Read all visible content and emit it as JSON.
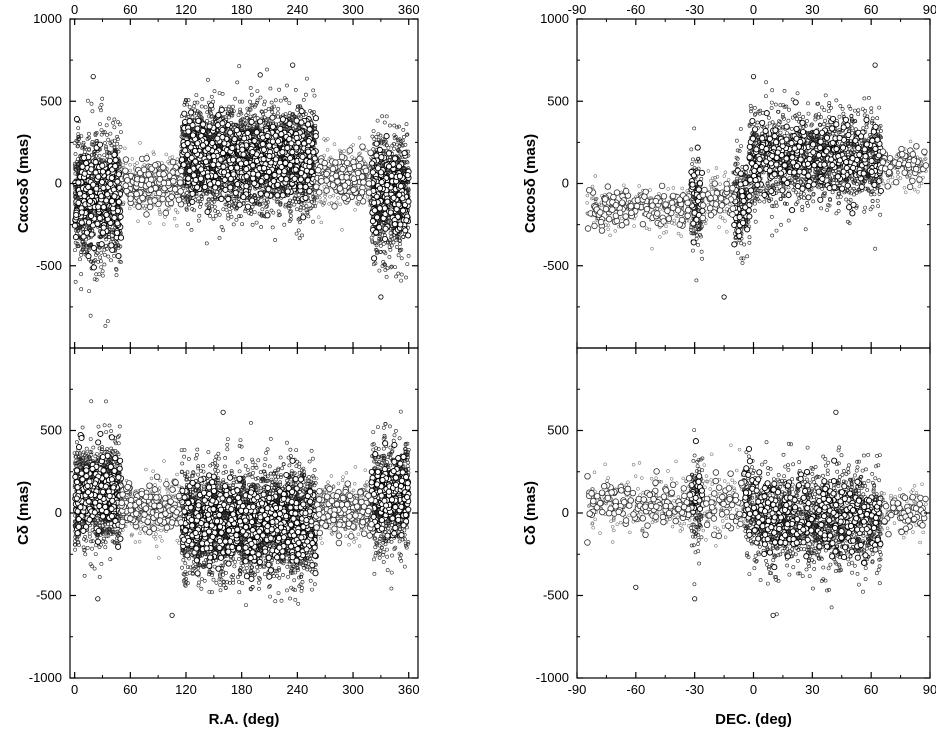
{
  "chart_data": [
    {
      "type": "scatter",
      "panel": "top-left",
      "xlabel": "",
      "ylabel": "Cαcosδ (mas)",
      "xlim": [
        -5,
        370
      ],
      "ylim": [
        -1000,
        1000
      ],
      "x_ticks": [
        0,
        60,
        120,
        180,
        240,
        300,
        360
      ],
      "x_tick_labels_top": [
        "0",
        "60",
        "120",
        "180",
        "240",
        "300",
        "360"
      ],
      "y_ticks": [
        1000,
        500,
        0,
        -500
      ],
      "y_tick_labels": [
        "1000",
        "500",
        "0",
        "-500"
      ],
      "dense_bands": [
        {
          "x": [
            0,
            50
          ],
          "y_mean": -80,
          "y_spread": 250
        },
        {
          "x": [
            115,
            260
          ],
          "y_mean": 150,
          "y_spread": 200
        },
        {
          "x": [
            320,
            360
          ],
          "y_mean": -60,
          "y_spread": 230
        }
      ],
      "sparse_bands": [
        {
          "x": [
            50,
            115
          ],
          "y_mean": 0,
          "y_spread": 110
        },
        {
          "x": [
            260,
            320
          ],
          "y_mean": 30,
          "y_spread": 110
        }
      ],
      "outliers": [
        {
          "x": 330,
          "y": -690
        },
        {
          "x": 20,
          "y": 650
        },
        {
          "x": 200,
          "y": 660
        },
        {
          "x": 235,
          "y": 720
        }
      ]
    },
    {
      "type": "scatter",
      "panel": "bottom-left",
      "xlabel": "R.A. (deg)",
      "ylabel": "Cδ (mas)",
      "xlim": [
        -5,
        370
      ],
      "ylim": [
        -1000,
        1000
      ],
      "x_ticks": [
        0,
        60,
        120,
        180,
        240,
        300,
        360
      ],
      "x_tick_labels": [
        "0",
        "60",
        "120",
        "180",
        "240",
        "300",
        "360"
      ],
      "y_ticks": [
        500,
        0,
        -500,
        -1000
      ],
      "y_tick_labels": [
        "500",
        "0",
        "-500",
        "-1000"
      ],
      "dense_bands": [
        {
          "x": [
            0,
            50
          ],
          "y_mean": 110,
          "y_spread": 200
        },
        {
          "x": [
            115,
            260
          ],
          "y_mean": -60,
          "y_spread": 210
        },
        {
          "x": [
            320,
            360
          ],
          "y_mean": 100,
          "y_spread": 200
        }
      ],
      "sparse_bands": [
        {
          "x": [
            50,
            115
          ],
          "y_mean": 30,
          "y_spread": 110
        },
        {
          "x": [
            260,
            320
          ],
          "y_mean": 10,
          "y_spread": 110
        }
      ],
      "outliers": [
        {
          "x": 105,
          "y": -620
        },
        {
          "x": 25,
          "y": -520
        },
        {
          "x": 160,
          "y": 610
        }
      ]
    },
    {
      "type": "scatter",
      "panel": "top-right",
      "xlabel": "",
      "ylabel": "Cαcosδ (mas)",
      "xlim": [
        -90,
        90
      ],
      "ylim": [
        -1000,
        1000
      ],
      "x_ticks": [
        -90,
        -60,
        -30,
        0,
        30,
        60,
        90
      ],
      "x_tick_labels_top": [
        "-90",
        "-60",
        "-30",
        "0",
        "30",
        "60",
        "90"
      ],
      "y_ticks": [
        1000,
        500,
        0,
        -500
      ],
      "y_tick_labels": [
        "1000",
        "500",
        "0",
        "-500"
      ],
      "dense_bands": [
        {
          "x": [
            -32,
            -26
          ],
          "y_mean": -120,
          "y_spread": 220
        },
        {
          "x": [
            -10,
            -2
          ],
          "y_mean": -120,
          "y_spread": 200
        },
        {
          "x": [
            -2,
            65
          ],
          "y_mean": 150,
          "y_spread": 200
        }
      ],
      "sparse_bands": [
        {
          "x": [
            -85,
            -32
          ],
          "y_mean": -150,
          "y_spread": 90
        },
        {
          "x": [
            -26,
            -10
          ],
          "y_mean": -90,
          "y_spread": 120
        },
        {
          "x": [
            65,
            88
          ],
          "y_mean": 110,
          "y_spread": 80
        }
      ],
      "outliers": [
        {
          "x": -15,
          "y": -690
        },
        {
          "x": 0,
          "y": 650
        },
        {
          "x": 62,
          "y": 720
        }
      ]
    },
    {
      "type": "scatter",
      "panel": "bottom-right",
      "xlabel": "DEC. (deg)",
      "ylabel": "Cδ (mas)",
      "xlim": [
        -90,
        90
      ],
      "ylim": [
        -1000,
        1000
      ],
      "x_ticks": [
        -90,
        -60,
        -30,
        0,
        30,
        60,
        90
      ],
      "x_tick_labels": [
        "-90",
        "-60",
        "-30",
        "0",
        "30",
        "60",
        "90"
      ],
      "y_ticks": [
        500,
        0,
        -500,
        -1000
      ],
      "y_tick_labels": [
        "500",
        "0",
        "-500",
        "-1000"
      ],
      "dense_bands": [
        {
          "x": [
            -32,
            -26
          ],
          "y_mean": 100,
          "y_spread": 200
        },
        {
          "x": [
            -5,
            0
          ],
          "y_mean": 80,
          "y_spread": 220
        },
        {
          "x": [
            0,
            65
          ],
          "y_mean": -40,
          "y_spread": 200
        }
      ],
      "sparse_bands": [
        {
          "x": [
            -85,
            -32
          ],
          "y_mean": 60,
          "y_spread": 110
        },
        {
          "x": [
            -26,
            -5
          ],
          "y_mean": 70,
          "y_spread": 140
        },
        {
          "x": [
            65,
            88
          ],
          "y_mean": 10,
          "y_spread": 90
        }
      ],
      "outliers": [
        {
          "x": 10,
          "y": -620
        },
        {
          "x": -60,
          "y": -450
        },
        {
          "x": 42,
          "y": 610
        },
        {
          "x": -30,
          "y": -520
        }
      ]
    }
  ]
}
